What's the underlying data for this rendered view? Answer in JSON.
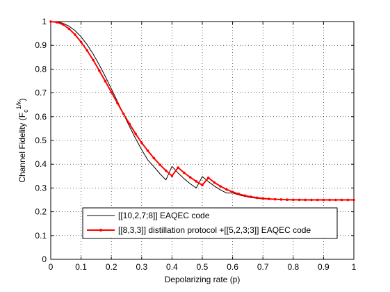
{
  "chart_data": {
    "type": "line",
    "xlabel": "Depolarizing rate (p)",
    "ylabel": "Channel Fidelity (F",
    "ylabel_sup": "1/k",
    "ylabel_sub": "c",
    "ylabel_end": ")",
    "xlim": [
      0,
      1
    ],
    "ylim": [
      0,
      1
    ],
    "x_ticks": [
      "0",
      "0.1",
      "0.2",
      "0.3",
      "0.4",
      "0.5",
      "0.6",
      "0.7",
      "0.8",
      "0.9",
      "1"
    ],
    "y_ticks": [
      "0",
      "0.1",
      "0.2",
      "0.3",
      "0.4",
      "0.5",
      "0.6",
      "0.7",
      "0.8",
      "0.9",
      "1"
    ],
    "grid": true,
    "legend_position": "bottom-center",
    "series": [
      {
        "name": "[[10,2,7;8]] EAQEC code",
        "color": "#000000",
        "marker": "none",
        "x": [
          0,
          0.02,
          0.04,
          0.06,
          0.08,
          0.1,
          0.12,
          0.14,
          0.16,
          0.18,
          0.2,
          0.22,
          0.24,
          0.26,
          0.28,
          0.3,
          0.32,
          0.34,
          0.36,
          0.38,
          0.4,
          0.42,
          0.44,
          0.46,
          0.48,
          0.5,
          0.52,
          0.54,
          0.56,
          0.58,
          0.6,
          0.62,
          0.64,
          0.66,
          0.68,
          0.7,
          0.72,
          0.74,
          0.76,
          0.78,
          0.8,
          0.82,
          0.84,
          0.86,
          0.88,
          0.9,
          0.92,
          0.94,
          0.96,
          0.98,
          1.0
        ],
        "y": [
          1.0,
          0.999,
          0.993,
          0.981,
          0.962,
          0.936,
          0.903,
          0.863,
          0.818,
          0.769,
          0.717,
          0.664,
          0.611,
          0.558,
          0.508,
          0.461,
          0.418,
          0.39,
          0.36,
          0.334,
          0.391,
          0.363,
          0.339,
          0.318,
          0.3,
          0.348,
          0.327,
          0.308,
          0.292,
          0.279,
          0.279,
          0.271,
          0.265,
          0.26,
          0.257,
          0.254,
          0.253,
          0.252,
          0.251,
          0.2505,
          0.2502,
          0.2501,
          0.25,
          0.25,
          0.25,
          0.25,
          0.25,
          0.25,
          0.25,
          0.25,
          0.25
        ]
      },
      {
        "name": "[[8,3,3]] distillation protocol +[[5,2,3;3]] EAQEC code",
        "color": "#ff0000",
        "marker": "dot",
        "x": [
          0,
          0.02,
          0.04,
          0.06,
          0.08,
          0.1,
          0.12,
          0.14,
          0.16,
          0.18,
          0.2,
          0.22,
          0.24,
          0.26,
          0.28,
          0.3,
          0.32,
          0.34,
          0.36,
          0.38,
          0.4,
          0.42,
          0.44,
          0.46,
          0.48,
          0.5,
          0.52,
          0.54,
          0.56,
          0.58,
          0.6,
          0.62,
          0.64,
          0.66,
          0.68,
          0.7,
          0.72,
          0.74,
          0.76,
          0.78,
          0.8,
          0.82,
          0.84,
          0.86,
          0.88,
          0.9,
          0.92,
          0.94,
          0.96,
          0.98,
          1.0
        ],
        "y": [
          1.0,
          0.997,
          0.988,
          0.97,
          0.945,
          0.914,
          0.878,
          0.838,
          0.794,
          0.749,
          0.703,
          0.657,
          0.612,
          0.569,
          0.528,
          0.49,
          0.457,
          0.426,
          0.398,
          0.373,
          0.351,
          0.386,
          0.364,
          0.345,
          0.328,
          0.312,
          0.343,
          0.323,
          0.307,
          0.294,
          0.283,
          0.275,
          0.268,
          0.263,
          0.259,
          0.256,
          0.254,
          0.2525,
          0.2515,
          0.2508,
          0.2504,
          0.2502,
          0.2501,
          0.25,
          0.25,
          0.25,
          0.25,
          0.25,
          0.25,
          0.25,
          0.25
        ]
      }
    ]
  }
}
